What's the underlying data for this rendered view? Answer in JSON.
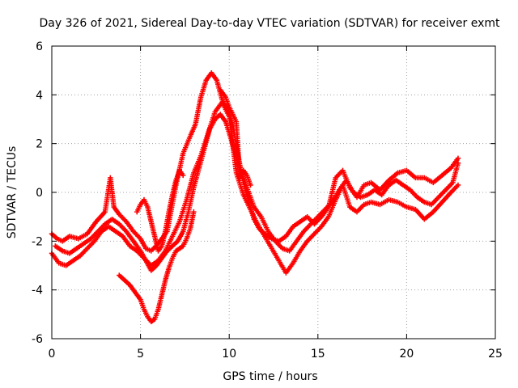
{
  "chart_data": {
    "type": "scatter",
    "title": "Day 326 of 2021, Sidereal Day-to-day VTEC variation (SDTVAR) for receiver exmt",
    "xlabel": "GPS time / hours",
    "ylabel": "SDTVAR / TECUs",
    "xlim": [
      0,
      25
    ],
    "ylim": [
      -6,
      6
    ],
    "xticks": [
      "0",
      "5",
      "10",
      "15",
      "20",
      "25"
    ],
    "yticks": [
      "-6",
      "-4",
      "-2",
      "0",
      "2",
      "4",
      "6"
    ],
    "grid": true,
    "marker": "+",
    "color": "#ff0000",
    "series": [
      {
        "x": [
          0.0,
          0.3,
          0.6,
          1.0,
          1.5,
          2.0,
          2.5,
          3.0,
          3.3,
          3.5,
          3.8,
          4.2,
          4.6,
          5.0,
          5.3,
          5.6,
          6.0,
          6.5,
          7.0,
          7.4,
          7.8,
          8.1,
          8.4,
          8.7,
          9.0,
          9.3,
          9.6,
          9.9,
          10.2,
          10.5,
          10.8,
          11.1,
          11.4,
          11.7,
          12.0,
          12.4,
          12.8,
          13.2,
          13.6,
          14.0,
          14.4,
          14.8,
          15.2,
          15.6,
          16.0,
          16.4,
          16.8,
          17.2,
          17.6,
          18.0,
          18.5,
          19.0,
          19.5,
          20.0,
          20.5,
          21.0,
          21.5,
          22.0,
          22.5,
          22.9
        ],
        "y": [
          -1.7,
          -1.9,
          -2.0,
          -1.8,
          -1.9,
          -1.7,
          -1.2,
          -0.8,
          0.6,
          -0.6,
          -0.9,
          -1.2,
          -1.6,
          -1.9,
          -2.3,
          -2.4,
          -2.1,
          -1.6,
          0.3,
          1.6,
          2.3,
          2.8,
          3.9,
          4.6,
          4.9,
          4.6,
          3.8,
          3.4,
          2.8,
          1.5,
          0.4,
          -0.4,
          -1.1,
          -1.5,
          -1.7,
          -1.9,
          -2.0,
          -1.8,
          -1.4,
          -1.2,
          -1.0,
          -1.3,
          -1.0,
          -0.6,
          0.6,
          0.9,
          0.2,
          -0.2,
          0.3,
          0.4,
          0.1,
          0.5,
          0.8,
          0.9,
          0.6,
          0.6,
          0.4,
          0.7,
          1.0,
          1.4
        ]
      },
      {
        "x": [
          0.0,
          0.4,
          0.8,
          1.2,
          1.6,
          2.0,
          2.4,
          2.8,
          3.2,
          3.6,
          4.0,
          4.4,
          4.8,
          5.2,
          5.6,
          6.0,
          6.4,
          6.8,
          7.2,
          7.6,
          8.0,
          8.4,
          8.8,
          9.2,
          9.6,
          10.0,
          10.4,
          10.8,
          11.2,
          11.6,
          12.0,
          12.4,
          12.8,
          13.2,
          13.6,
          14.0,
          14.4,
          14.8,
          15.2,
          15.6,
          16.0,
          16.4,
          16.8,
          17.2,
          17.6,
          18.0,
          18.5,
          19.0,
          19.5,
          20.0,
          20.5,
          21.0,
          21.5,
          22.0,
          22.5,
          22.9
        ],
        "y": [
          -2.5,
          -2.9,
          -3.0,
          -2.8,
          -2.6,
          -2.3,
          -2.0,
          -1.6,
          -1.4,
          -1.6,
          -1.8,
          -2.2,
          -2.4,
          -2.7,
          -3.0,
          -2.8,
          -2.4,
          -1.8,
          -1.2,
          -0.3,
          0.8,
          1.5,
          2.4,
          3.3,
          3.7,
          3.1,
          0.8,
          -0.1,
          -0.7,
          -1.3,
          -1.8,
          -2.3,
          -2.8,
          -3.3,
          -2.9,
          -2.4,
          -2.0,
          -1.7,
          -1.4,
          -1.0,
          -0.3,
          0.3,
          -0.6,
          -0.8,
          -0.5,
          -0.4,
          -0.5,
          -0.3,
          -0.4,
          -0.6,
          -0.7,
          -1.1,
          -0.8,
          -0.4,
          0.0,
          0.3
        ]
      },
      {
        "x": [
          0.2,
          0.6,
          1.0,
          1.4,
          1.8,
          2.2,
          2.6,
          3.0,
          3.4,
          3.8,
          4.2,
          4.6,
          5.0,
          5.3,
          5.6,
          5.9,
          6.2,
          6.5,
          6.8,
          7.1,
          7.4,
          7.7,
          8.0,
          8.3,
          8.6,
          8.9,
          9.2,
          9.5,
          9.8,
          10.1,
          10.4,
          10.7,
          11.0,
          11.4,
          11.8,
          12.2,
          12.6,
          13.0,
          13.4,
          13.8,
          14.2,
          14.6,
          15.0,
          15.4,
          15.8,
          16.2,
          16.6,
          17.0,
          17.4,
          17.8,
          18.2,
          18.6,
          19.0,
          19.4,
          19.8,
          20.2,
          20.6,
          21.0,
          21.4,
          21.8,
          22.2,
          22.6,
          22.9
        ],
        "y": [
          -2.2,
          -2.4,
          -2.5,
          -2.3,
          -2.1,
          -1.9,
          -1.6,
          -1.3,
          -1.1,
          -1.3,
          -1.6,
          -2.0,
          -2.4,
          -2.8,
          -3.2,
          -3.0,
          -2.7,
          -2.4,
          -2.2,
          -2.0,
          -1.6,
          -0.8,
          0.2,
          1.0,
          1.8,
          2.6,
          3.0,
          3.2,
          2.9,
          2.2,
          1.4,
          0.8,
          0.2,
          -0.6,
          -1.0,
          -1.6,
          -2.0,
          -2.3,
          -2.4,
          -2.0,
          -1.6,
          -1.3,
          -1.0,
          -0.7,
          -0.4,
          0.1,
          0.5,
          0.0,
          -0.2,
          -0.1,
          0.1,
          -0.1,
          0.3,
          0.5,
          0.3,
          0.1,
          -0.2,
          -0.4,
          -0.5,
          -0.2,
          0.1,
          0.4,
          1.2
        ]
      },
      {
        "x": [
          3.8,
          4.1,
          4.4,
          4.7,
          5.0,
          5.2,
          5.4,
          5.6,
          5.8,
          6.0,
          6.2,
          6.4,
          6.6,
          6.8,
          7.0,
          7.2,
          7.4,
          7.6,
          7.8,
          8.0
        ],
        "y": [
          -3.4,
          -3.6,
          -3.8,
          -4.1,
          -4.4,
          -4.8,
          -5.1,
          -5.3,
          -5.2,
          -4.8,
          -4.2,
          -3.6,
          -3.1,
          -2.7,
          -2.4,
          -2.3,
          -2.2,
          -1.9,
          -1.5,
          -0.8
        ]
      },
      {
        "x": [
          4.8,
          5.0,
          5.2,
          5.4,
          5.6,
          5.8,
          6.0,
          6.2,
          6.4,
          6.6,
          6.8,
          7.0,
          7.2,
          7.4
        ],
        "y": [
          -0.8,
          -0.5,
          -0.3,
          -0.6,
          -1.2,
          -1.8,
          -2.4,
          -2.2,
          -1.6,
          -0.8,
          -0.1,
          0.5,
          0.9,
          0.7
        ]
      },
      {
        "x": [
          9.5,
          9.8,
          10.0,
          10.2,
          10.4,
          10.6,
          10.8,
          11.0,
          11.2
        ],
        "y": [
          4.2,
          3.9,
          3.5,
          3.2,
          2.9,
          0.6,
          0.9,
          0.7,
          0.3
        ]
      }
    ]
  }
}
